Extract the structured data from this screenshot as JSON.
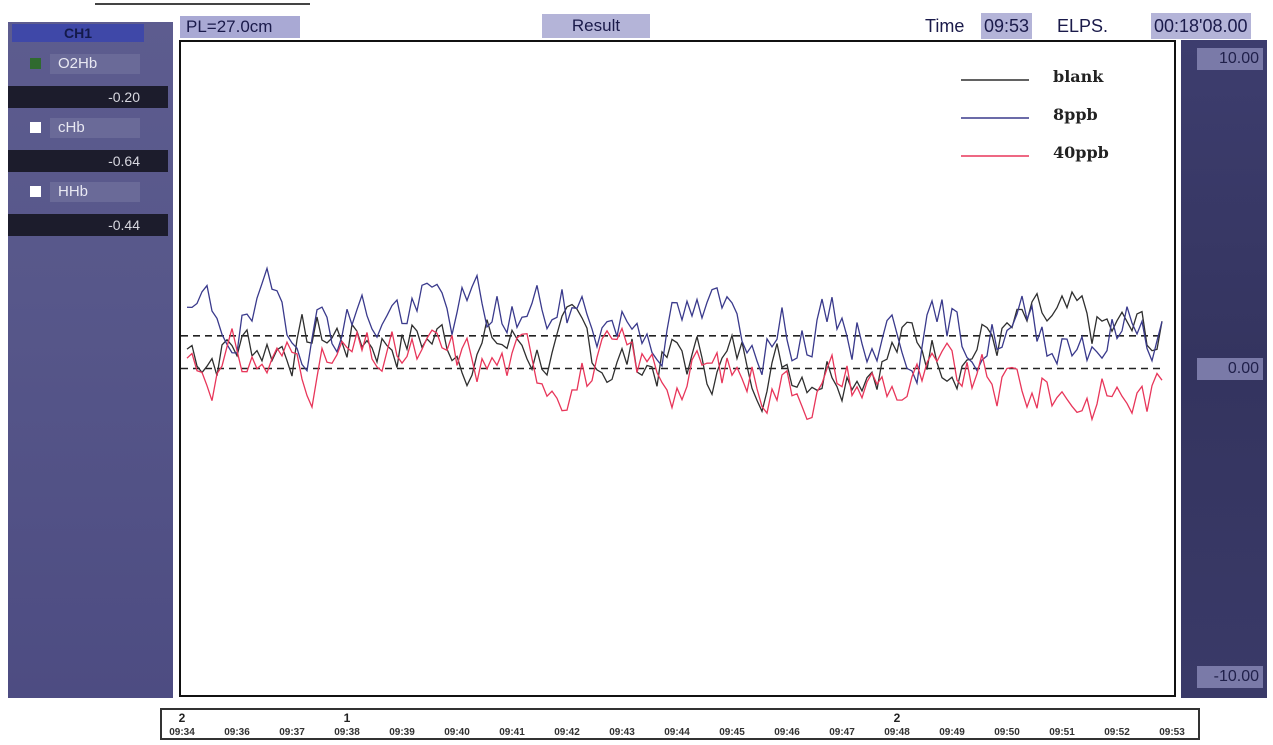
{
  "channel_panel": {
    "header": "CH1",
    "items": [
      {
        "name": "O2Hb",
        "value": "-0.20",
        "swatch_color": "#2f6a2f"
      },
      {
        "name": "cHb",
        "value": "-0.64",
        "swatch_color": "#ffffff"
      },
      {
        "name": "HHb",
        "value": "-0.44",
        "swatch_color": "#ffffff"
      }
    ]
  },
  "top_bar": {
    "pl": "PL=27.0cm",
    "mode": "Result",
    "time_label": "Time",
    "time_value": "09:53",
    "elapsed_label": "ELPS.",
    "elapsed_value": "00:18'08.00"
  },
  "scale": {
    "top": "10.00",
    "mid": "0.00",
    "bottom": "-10.00"
  },
  "time_axis": {
    "ticks": [
      "09:34",
      "09:36",
      "09:37",
      "09:38",
      "09:39",
      "09:40",
      "09:41",
      "09:42",
      "09:43",
      "09:44",
      "09:45",
      "09:46",
      "09:47",
      "09:48",
      "09:49",
      "09:50",
      "09:51",
      "09:52",
      "09:53"
    ],
    "markers": [
      {
        "label": "2",
        "tick": "09:34"
      },
      {
        "label": "1",
        "tick": "09:38"
      },
      {
        "label": "2",
        "tick": "09:48"
      }
    ]
  },
  "chart_data": {
    "type": "line",
    "ylim": [
      -10,
      10
    ],
    "series": [
      {
        "name": "blank",
        "color": "#2f2f2f"
      },
      {
        "name": "8ppb",
        "color": "#3a3a8c"
      },
      {
        "name": "40ppb",
        "color": "#e8365a"
      }
    ],
    "reference_lines": [
      1.0,
      0.0
    ]
  }
}
